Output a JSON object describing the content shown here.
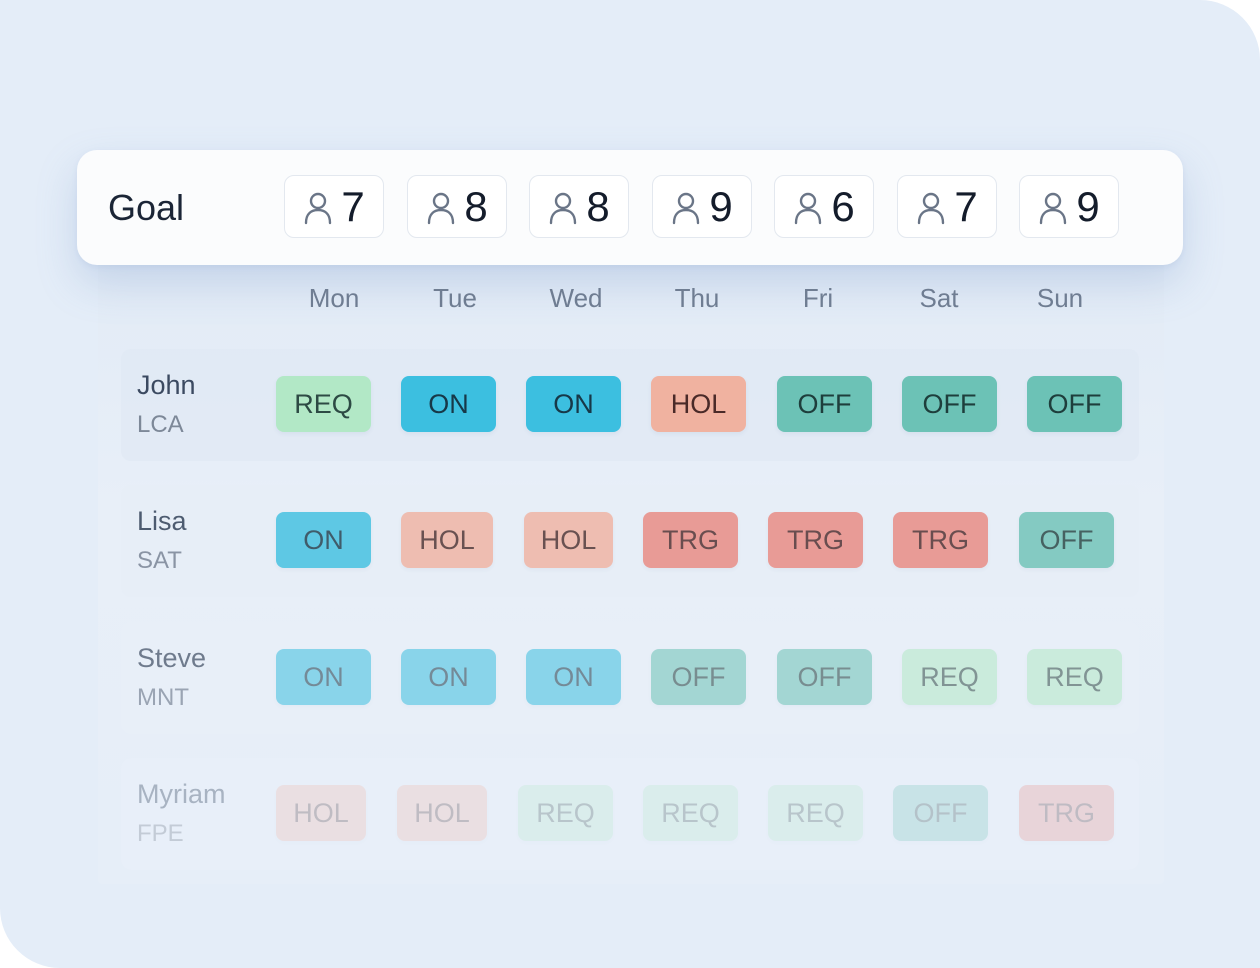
{
  "goal": {
    "label": "Goal",
    "targets": [
      {
        "value": "7",
        "icon": "person-icon"
      },
      {
        "value": "8",
        "icon": "person-icon"
      },
      {
        "value": "8",
        "icon": "person-icon"
      },
      {
        "value": "9",
        "icon": "person-icon"
      },
      {
        "value": "6",
        "icon": "person-icon"
      },
      {
        "value": "7",
        "icon": "person-icon"
      },
      {
        "value": "9",
        "icon": "person-icon"
      }
    ]
  },
  "days": [
    "Mon",
    "Tue",
    "Wed",
    "Thu",
    "Fri",
    "Sat",
    "Sun"
  ],
  "shift_colors": {
    "REQ": {
      "bg": "#b2e8c6",
      "fg": "#2d4a44"
    },
    "ON": {
      "bg": "#3cbfe0",
      "fg": "#173848"
    },
    "HOL": {
      "bg": "#f0b2a0",
      "fg": "#4a2a28"
    },
    "TRG": {
      "bg": "#e9877e",
      "fg": "#4a2626"
    },
    "OFF": {
      "bg": "#6cc2b6",
      "fg": "#1e3e3c"
    }
  },
  "staff": [
    {
      "name": "John",
      "role": "LCA",
      "shifts": [
        "REQ",
        "ON",
        "ON",
        "HOL",
        "OFF",
        "OFF",
        "OFF"
      ]
    },
    {
      "name": "Lisa",
      "role": "SAT",
      "shifts": [
        "ON",
        "HOL",
        "HOL",
        "TRG",
        "TRG",
        "TRG",
        "OFF"
      ]
    },
    {
      "name": "Steve",
      "role": "MNT",
      "shifts": [
        "ON",
        "ON",
        "ON",
        "OFF",
        "OFF",
        "REQ",
        "REQ"
      ]
    },
    {
      "name": "Myriam",
      "role": "FPE",
      "shifts": [
        "HOL",
        "HOL",
        "REQ",
        "REQ",
        "REQ",
        "OFF",
        "TRG"
      ]
    }
  ]
}
